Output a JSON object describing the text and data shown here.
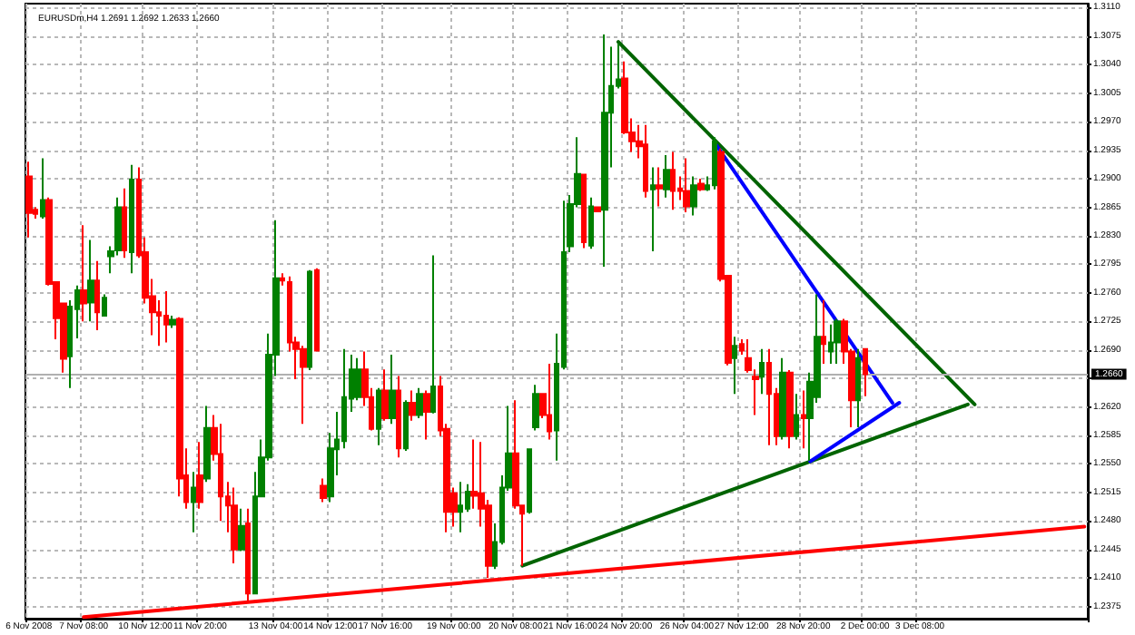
{
  "chart_data": {
    "type": "candlestick",
    "title": "EURUSDm,H4 1.2691 1.2692 1.2633 1.2660",
    "categories": [
      "6 Nov 2008",
      null,
      null,
      null,
      null,
      null,
      null,
      null,
      "7 Nov 08:00",
      null,
      null,
      null,
      null,
      null,
      null,
      null,
      null,
      "10 Nov 12:00",
      null,
      null,
      null,
      null,
      null,
      null,
      null,
      "11 Nov 20:00",
      null,
      null,
      null,
      null,
      null,
      null,
      null,
      null,
      null,
      null,
      "13 Nov 04:00",
      null,
      null,
      null,
      null,
      null,
      null,
      null,
      "14 Nov 12:00",
      null,
      null,
      null,
      null,
      null,
      null,
      null,
      "17 Nov 16:00",
      null,
      null,
      null,
      null,
      null,
      null,
      null,
      null,
      null,
      "19 Nov 00:00",
      null,
      null,
      null,
      null,
      null,
      null,
      null,
      null,
      "20 Nov 08:00",
      null,
      null,
      null,
      null,
      null,
      null,
      null,
      "21 Nov 16:00",
      null,
      null,
      null,
      null,
      null,
      null,
      null,
      "24 Nov 20:00",
      null,
      null,
      null,
      null,
      null,
      null,
      null,
      null,
      "26 Nov 04:00",
      null,
      null,
      null,
      null,
      null,
      null,
      null,
      "27 Nov 12:00",
      null,
      null,
      null,
      null,
      null,
      null,
      null,
      null,
      "28 Nov 20:00",
      null,
      null,
      null,
      null,
      null,
      null,
      null,
      null,
      "2 Dec 00:00",
      null,
      null,
      null,
      null,
      null,
      null,
      null,
      "3 Dec 08:00",
      null,
      null,
      null,
      null,
      null,
      null,
      null,
      null,
      null,
      null,
      null,
      null,
      null,
      null,
      null,
      null,
      null,
      null,
      null,
      null,
      null,
      null,
      null,
      null
    ],
    "ohlc": [
      [
        1.2903,
        1.2921,
        1.2828,
        1.2858
      ],
      [
        1.2862,
        1.2865,
        1.2851,
        1.2857
      ],
      [
        1.2854,
        1.2925,
        1.2851,
        1.2874
      ],
      [
        1.2874,
        1.2877,
        1.2769,
        1.2771
      ],
      [
        1.2773,
        1.2774,
        1.2703,
        1.2729
      ],
      [
        1.2747,
        1.2748,
        1.2662,
        1.2679
      ],
      [
        1.2682,
        1.2751,
        1.2643,
        1.2743
      ],
      [
        1.274,
        1.2769,
        1.2704,
        1.2763
      ],
      [
        1.2763,
        1.2843,
        1.2725,
        1.2747
      ],
      [
        1.2748,
        1.2825,
        1.2725,
        1.2775
      ],
      [
        1.2775,
        1.2799,
        1.2714,
        1.2736
      ],
      [
        1.2732,
        1.2758,
        1.2732,
        1.2754
      ],
      [
        1.2805,
        1.2817,
        1.2784,
        1.2811
      ],
      [
        1.2812,
        1.2877,
        1.2806,
        1.2865
      ],
      [
        1.2865,
        1.2888,
        1.2803,
        1.2812
      ],
      [
        1.281,
        1.2917,
        1.2784,
        1.2899
      ],
      [
        1.2899,
        1.2914,
        1.2803,
        1.2806
      ],
      [
        1.281,
        1.2828,
        1.2747,
        1.2754
      ],
      [
        1.2756,
        1.2777,
        1.2708,
        1.2736
      ],
      [
        1.2736,
        1.2751,
        1.2695,
        1.2732
      ],
      [
        1.2732,
        1.2762,
        1.2699,
        1.2721
      ],
      [
        1.2721,
        1.2732,
        1.2717,
        1.2727
      ],
      [
        1.2728,
        1.273,
        1.251,
        1.2532
      ],
      [
        1.2536,
        1.2569,
        1.2495,
        1.2503
      ],
      [
        1.2503,
        1.254,
        1.2466,
        1.2521
      ],
      [
        1.2536,
        1.2577,
        1.2495,
        1.2503
      ],
      [
        1.2532,
        1.2621,
        1.2528,
        1.2594
      ],
      [
        1.2594,
        1.261,
        1.2554,
        1.2562
      ],
      [
        1.2562,
        1.2599,
        1.248,
        1.251
      ],
      [
        1.251,
        1.2528,
        1.2466,
        1.2499
      ],
      [
        1.2499,
        1.2521,
        1.2428,
        1.2445
      ],
      [
        1.2445,
        1.2495,
        1.2443,
        1.2474
      ],
      [
        1.2477,
        1.2495,
        1.238,
        1.2391
      ],
      [
        1.2391,
        1.254,
        1.2391,
        1.251
      ],
      [
        1.251,
        1.258,
        1.251,
        1.2558
      ],
      [
        1.2558,
        1.271,
        1.2554,
        1.2684
      ],
      [
        1.2684,
        1.2849,
        1.2658,
        1.2778
      ],
      [
        1.2778,
        1.2784,
        1.2769,
        1.2775
      ],
      [
        1.2773,
        1.278,
        1.2688,
        1.2699
      ],
      [
        1.2699,
        1.2706,
        1.2654,
        1.2691
      ],
      [
        1.2691,
        1.2695,
        1.2599,
        1.2669
      ],
      [
        1.2669,
        1.2788,
        1.2665,
        1.2786
      ],
      [
        1.2788,
        1.279,
        1.2688,
        1.2689
      ],
      [
        1.2523,
        1.2532,
        1.2503,
        1.2508
      ],
      [
        1.251,
        1.2588,
        1.2503,
        1.2569
      ],
      [
        1.2568,
        1.2614,
        1.2536,
        1.258
      ],
      [
        1.2578,
        1.2691,
        1.2569,
        1.2632
      ],
      [
        1.263,
        1.2684,
        1.2614,
        1.2666
      ],
      [
        1.2632,
        1.268,
        1.2628,
        1.2666
      ],
      [
        1.2666,
        1.2688,
        1.2621,
        1.2632
      ],
      [
        1.2632,
        1.2643,
        1.2591,
        1.2593
      ],
      [
        1.2593,
        1.2643,
        1.2573,
        1.264
      ],
      [
        1.264,
        1.2666,
        1.2603,
        1.2606
      ],
      [
        1.2606,
        1.2684,
        1.2599,
        1.264
      ],
      [
        1.264,
        1.2658,
        1.2558,
        1.2569
      ],
      [
        1.2569,
        1.2628,
        1.2566,
        1.2625
      ],
      [
        1.2625,
        1.264,
        1.2603,
        1.261
      ],
      [
        1.261,
        1.2643,
        1.2606,
        1.2636
      ],
      [
        1.2636,
        1.264,
        1.258,
        1.2614
      ],
      [
        1.2614,
        1.2806,
        1.2612,
        1.2645
      ],
      [
        1.2645,
        1.2658,
        1.2584,
        1.2591
      ],
      [
        1.2593,
        1.2599,
        1.2466,
        1.2491
      ],
      [
        1.2514,
        1.2521,
        1.2473,
        1.2491
      ],
      [
        1.2491,
        1.2528,
        1.2466,
        1.2499
      ],
      [
        1.2495,
        1.2525,
        1.2491,
        1.2516
      ],
      [
        1.2516,
        1.258,
        1.2495,
        1.2511
      ],
      [
        1.2514,
        1.2577,
        1.2473,
        1.2495
      ],
      [
        1.2499,
        1.2506,
        1.241,
        1.2425
      ],
      [
        1.2425,
        1.2477,
        1.2421,
        1.2454
      ],
      [
        1.2454,
        1.2536,
        1.2451,
        1.2521
      ],
      [
        1.2521,
        1.2621,
        1.2517,
        1.2563
      ],
      [
        1.2563,
        1.2628,
        1.2495,
        1.2499
      ],
      [
        1.2499,
        1.2499,
        1.2425,
        1.2489
      ],
      [
        1.2491,
        1.2569,
        1.2489,
        1.2568
      ],
      [
        1.2595,
        1.2647,
        1.2591,
        1.2636
      ],
      [
        1.2636,
        1.2636,
        1.2606,
        1.261
      ],
      [
        1.261,
        1.2673,
        1.258,
        1.259
      ],
      [
        1.2591,
        1.271,
        1.2554,
        1.2673
      ],
      [
        1.2669,
        1.2873,
        1.2666,
        1.281
      ],
      [
        1.2817,
        1.288,
        1.281,
        1.2869
      ],
      [
        1.2869,
        1.2951,
        1.2865,
        1.2906
      ],
      [
        1.2905,
        1.2906,
        1.2815,
        1.2822
      ],
      [
        1.2818,
        1.2877,
        1.2814,
        1.2866
      ],
      [
        1.2865,
        1.2866,
        1.2859,
        1.286
      ],
      [
        1.2862,
        1.3077,
        1.2792,
        1.2981
      ],
      [
        1.2981,
        1.3062,
        1.2914,
        1.3014
      ],
      [
        1.3014,
        1.3066,
        1.3011,
        1.3022
      ],
      [
        1.3023,
        1.3044,
        1.2955,
        1.2957
      ],
      [
        1.2957,
        1.2974,
        1.2933,
        1.2946
      ],
      [
        1.2946,
        1.2966,
        1.2925,
        1.294
      ],
      [
        1.2942,
        1.2966,
        1.2877,
        1.2885
      ],
      [
        1.2887,
        1.2914,
        1.2811,
        1.2892
      ],
      [
        1.2892,
        1.2914,
        1.2866,
        1.2888
      ],
      [
        1.2887,
        1.2929,
        1.2877,
        1.2911
      ],
      [
        1.2911,
        1.2933,
        1.2862,
        1.2885
      ],
      [
        1.2888,
        1.2903,
        1.2874,
        1.2885
      ],
      [
        1.2885,
        1.2925,
        1.2859,
        1.2866
      ],
      [
        1.2866,
        1.2903,
        1.2855,
        1.2892
      ],
      [
        1.2894,
        1.29,
        1.2885,
        1.2887
      ],
      [
        1.2887,
        1.2903,
        1.2885,
        1.2892
      ],
      [
        1.2892,
        1.2951,
        1.2887,
        1.2946
      ],
      [
        1.2933,
        1.2937,
        1.2774,
        1.2777
      ],
      [
        1.2781,
        1.2781,
        1.2671,
        1.2674
      ],
      [
        1.268,
        1.2706,
        1.2636,
        1.2695
      ],
      [
        1.2697,
        1.2703,
        1.2684,
        1.2689
      ],
      [
        1.268,
        1.2703,
        1.2662,
        1.2665
      ],
      [
        1.2657,
        1.2666,
        1.261,
        1.2654
      ],
      [
        1.2657,
        1.2691,
        1.2636,
        1.2674
      ],
      [
        1.2674,
        1.2691,
        1.2573,
        1.2636
      ],
      [
        1.2636,
        1.2643,
        1.2573,
        1.2584
      ],
      [
        1.2584,
        1.268,
        1.258,
        1.2662
      ],
      [
        1.2662,
        1.2665,
        1.2569,
        1.2584
      ],
      [
        1.2584,
        1.2636,
        1.258,
        1.261
      ],
      [
        1.261,
        1.264,
        1.2569,
        1.2606
      ],
      [
        1.2606,
        1.2662,
        1.2554,
        1.2651
      ],
      [
        1.2632,
        1.2758,
        1.2625,
        1.2706
      ],
      [
        1.2706,
        1.2751,
        1.2673,
        1.2697
      ],
      [
        1.2688,
        1.2721,
        1.2673,
        1.2699
      ],
      [
        1.2699,
        1.2728,
        1.2673,
        1.2725
      ],
      [
        1.2725,
        1.2728,
        1.2673,
        1.2688
      ],
      [
        1.2688,
        1.2691,
        1.2595,
        1.2628
      ],
      [
        1.2628,
        1.2691,
        1.2595,
        1.268
      ],
      [
        1.2691,
        1.2692,
        1.2633,
        1.266
      ],
      null,
      null,
      null,
      null,
      null,
      null,
      null,
      null,
      null,
      null,
      null,
      null,
      null,
      null,
      null,
      null,
      null,
      null,
      null,
      null,
      null,
      null,
      null,
      null,
      null,
      null,
      null,
      null,
      null,
      null,
      null,
      null
    ],
    "colors": [
      "#ff0000",
      "#ff0000",
      "#008000",
      "#ff0000",
      "#ff0000",
      "#ff0000",
      "#008000",
      "#008000",
      "#ff0000",
      "#008000",
      "#ff0000",
      "#008000",
      "#008000",
      "#008000",
      "#ff0000",
      "#008000",
      "#ff0000",
      "#ff0000",
      "#ff0000",
      "#ff0000",
      "#ff0000",
      "#008000",
      "#ff0000",
      "#ff0000",
      "#008000",
      "#ff0000",
      "#008000",
      "#ff0000",
      "#ff0000",
      "#ff0000",
      "#ff0000",
      "#008000",
      "#ff0000",
      "#008000",
      "#008000",
      "#008000",
      "#008000",
      "#ff0000",
      "#ff0000",
      "#ff0000",
      "#ff0000",
      "#008000",
      "#ff0000",
      "#ff0000",
      "#008000",
      "#008000",
      "#008000",
      "#008000",
      "#008000",
      "#ff0000",
      "#ff0000",
      "#008000",
      "#ff0000",
      "#008000",
      "#ff0000",
      "#008000",
      "#ff0000",
      "#008000",
      "#ff0000",
      "#008000",
      "#ff0000",
      "#ff0000",
      "#ff0000",
      "#008000",
      "#008000",
      "#ff0000",
      "#ff0000",
      "#ff0000",
      "#008000",
      "#008000",
      "#008000",
      "#ff0000",
      "#ff0000",
      "#008000",
      "#008000",
      "#ff0000",
      "#ff0000",
      "#008000",
      "#008000",
      "#008000",
      "#008000",
      "#ff0000",
      "#008000",
      "#ff0000",
      "#008000",
      "#008000",
      "#008000",
      "#ff0000",
      "#ff0000",
      "#ff0000",
      "#ff0000",
      "#008000",
      "#ff0000",
      "#008000",
      "#ff0000",
      "#ff0000",
      "#ff0000",
      "#008000",
      "#ff0000",
      "#008000",
      "#008000",
      "#ff0000",
      "#ff0000",
      "#008000",
      "#ff0000",
      "#ff0000",
      "#ff0000",
      "#008000",
      "#ff0000",
      "#ff0000",
      "#008000",
      "#ff0000",
      "#008000",
      "#ff0000",
      "#008000",
      "#008000",
      "#ff0000",
      "#008000",
      "#008000",
      "#ff0000",
      "#ff0000",
      "#008000",
      "#ff0000",
      null,
      null,
      null,
      null,
      null,
      null,
      null,
      null,
      null,
      null,
      null,
      null,
      null,
      null,
      null,
      null,
      null,
      null,
      null,
      null,
      null,
      null,
      null,
      null,
      null,
      null,
      null,
      null,
      null,
      null,
      null,
      null
    ],
    "series": [
      {
        "type": "line",
        "color": "#006400",
        "values": [
          null,
          null,
          null,
          null,
          null,
          null,
          null,
          null,
          null,
          null,
          null,
          null,
          null,
          null,
          null,
          null,
          null,
          null,
          null,
          null,
          null,
          null,
          null,
          null,
          null,
          null,
          null,
          null,
          null,
          null,
          null,
          null,
          null,
          null,
          null,
          null,
          null,
          null,
          null,
          null,
          null,
          null,
          null,
          null,
          null,
          null,
          null,
          null,
          null,
          null,
          null,
          null,
          null,
          null,
          null,
          null,
          null,
          null,
          null,
          null,
          null,
          null,
          null,
          null,
          null,
          null,
          null,
          null,
          null,
          null,
          null,
          null,
          null,
          null,
          null,
          null,
          null,
          null,
          null,
          null,
          null,
          null,
          null,
          null,
          null,
          null,
          1.3068,
          null,
          null,
          null,
          null,
          null,
          null,
          null,
          null,
          null,
          null,
          null,
          null,
          null,
          null,
          null,
          null,
          null,
          null,
          null,
          null,
          null,
          null,
          null,
          null,
          null,
          null,
          null,
          null,
          null,
          null,
          null,
          null,
          null,
          null,
          null,
          null,
          null,
          null,
          null,
          null,
          null,
          null,
          null,
          null,
          null,
          null,
          null,
          null,
          null,
          null,
          null,
          1.2623,
          null,
          null,
          null,
          null,
          null,
          null,
          null,
          null,
          null,
          null,
          null,
          null,
          null,
          null,
          null,
          null
        ]
      },
      {
        "type": "line",
        "color": "#006400",
        "values": [
          null,
          null,
          null,
          null,
          null,
          null,
          null,
          null,
          null,
          null,
          null,
          null,
          null,
          null,
          null,
          null,
          null,
          null,
          null,
          null,
          null,
          null,
          null,
          null,
          null,
          null,
          null,
          null,
          null,
          null,
          null,
          null,
          null,
          null,
          null,
          null,
          null,
          null,
          null,
          null,
          null,
          null,
          null,
          null,
          null,
          null,
          null,
          null,
          null,
          null,
          null,
          null,
          null,
          null,
          null,
          null,
          null,
          null,
          null,
          null,
          null,
          null,
          null,
          null,
          null,
          null,
          null,
          null,
          null,
          null,
          null,
          null,
          1.2425,
          null,
          null,
          null,
          null,
          null,
          null,
          null,
          null,
          null,
          null,
          null,
          null,
          null,
          null,
          null,
          null,
          null,
          null,
          null,
          null,
          null,
          null,
          null,
          null,
          null,
          null,
          null,
          null,
          null,
          null,
          null,
          null,
          null,
          null,
          null,
          null,
          null,
          null,
          null,
          null,
          null,
          null,
          null,
          null,
          null,
          null,
          null,
          null,
          null,
          null,
          null,
          null,
          null,
          null,
          null,
          null,
          null,
          null,
          null,
          null,
          null,
          null,
          null,
          null,
          1.2623,
          null,
          null,
          null,
          null,
          null,
          null,
          null,
          null,
          null,
          null,
          null,
          null,
          null,
          null,
          null,
          null,
          null
        ]
      },
      {
        "type": "line",
        "color": "#0000ff",
        "values": [
          null,
          null,
          null,
          null,
          null,
          null,
          null,
          null,
          null,
          null,
          null,
          null,
          null,
          null,
          null,
          null,
          null,
          null,
          null,
          null,
          null,
          null,
          null,
          null,
          null,
          null,
          null,
          null,
          null,
          null,
          null,
          null,
          null,
          null,
          null,
          null,
          null,
          null,
          null,
          null,
          null,
          null,
          null,
          null,
          null,
          null,
          null,
          null,
          null,
          null,
          null,
          null,
          null,
          null,
          null,
          null,
          null,
          null,
          null,
          null,
          null,
          null,
          null,
          null,
          null,
          null,
          null,
          null,
          null,
          null,
          null,
          null,
          null,
          null,
          null,
          null,
          null,
          null,
          null,
          null,
          null,
          null,
          null,
          null,
          null,
          null,
          null,
          null,
          null,
          null,
          null,
          null,
          null,
          null,
          null,
          null,
          null,
          null,
          null,
          null,
          1.2945,
          null,
          null,
          null,
          null,
          null,
          null,
          null,
          null,
          null,
          null,
          null,
          null,
          null,
          null,
          null,
          null,
          null,
          null,
          null,
          null,
          null,
          null,
          null,
          null,
          null,
          1.2625,
          null,
          null,
          null,
          null,
          null,
          null,
          null,
          null,
          null,
          null,
          null,
          null,
          null,
          null,
          null,
          null,
          null,
          null,
          null,
          null,
          null,
          null,
          null,
          null,
          null,
          null,
          null,
          null
        ]
      },
      {
        "type": "line",
        "color": "#0000ff",
        "values": [
          null,
          null,
          null,
          null,
          null,
          null,
          null,
          null,
          null,
          null,
          null,
          null,
          null,
          null,
          null,
          null,
          null,
          null,
          null,
          null,
          null,
          null,
          null,
          null,
          null,
          null,
          null,
          null,
          null,
          null,
          null,
          null,
          null,
          null,
          null,
          null,
          null,
          null,
          null,
          null,
          null,
          null,
          null,
          null,
          null,
          null,
          null,
          null,
          null,
          null,
          null,
          null,
          null,
          null,
          null,
          null,
          null,
          null,
          null,
          null,
          null,
          null,
          null,
          null,
          null,
          null,
          null,
          null,
          null,
          null,
          null,
          null,
          null,
          null,
          null,
          null,
          null,
          null,
          null,
          null,
          null,
          null,
          null,
          null,
          null,
          null,
          null,
          null,
          null,
          null,
          null,
          null,
          null,
          null,
          null,
          null,
          null,
          null,
          null,
          null,
          null,
          null,
          null,
          null,
          null,
          null,
          null,
          null,
          null,
          null,
          null,
          null,
          null,
          null,
          1.2553,
          null,
          null,
          null,
          null,
          null,
          null,
          null,
          null,
          null,
          null,
          null,
          null,
          1.2625,
          null,
          null,
          null,
          null,
          null,
          null,
          null,
          null,
          null,
          null,
          null,
          null,
          null,
          null,
          null,
          null,
          null,
          null,
          null,
          null,
          null,
          null,
          null,
          null,
          null,
          null,
          null
        ]
      },
      {
        "type": "line",
        "color": "#ff0000",
        "values": [
          null,
          null,
          null,
          null,
          null,
          null,
          null,
          null,
          1.2362,
          null,
          null,
          null,
          null,
          null,
          null,
          null,
          null,
          null,
          null,
          null,
          null,
          null,
          null,
          null,
          null,
          null,
          null,
          null,
          null,
          null,
          null,
          null,
          null,
          null,
          null,
          null,
          null,
          null,
          null,
          null,
          null,
          null,
          null,
          null,
          null,
          null,
          null,
          null,
          null,
          null,
          null,
          null,
          null,
          null,
          null,
          null,
          null,
          null,
          null,
          null,
          null,
          null,
          null,
          null,
          null,
          null,
          null,
          null,
          null,
          null,
          null,
          null,
          null,
          null,
          null,
          null,
          null,
          null,
          null,
          null,
          null,
          null,
          null,
          null,
          null,
          null,
          null,
          null,
          null,
          null,
          null,
          null,
          null,
          null,
          null,
          null,
          null,
          null,
          null,
          null,
          null,
          null,
          null,
          null,
          null,
          null,
          null,
          null,
          null,
          null,
          null,
          null,
          null,
          null,
          null,
          null,
          null,
          null,
          null,
          null,
          null,
          null,
          null,
          null,
          null,
          null,
          null,
          null,
          null,
          null,
          null,
          null,
          null,
          null,
          null,
          null,
          null,
          null,
          null,
          null,
          null,
          null,
          null,
          null,
          null,
          null,
          null,
          null,
          null,
          null,
          null,
          null,
          null,
          null,
          1.2473
        ]
      }
    ],
    "marker": "none",
    "line_style": "solid",
    "ylim": [
      1.236,
      1.3115
    ],
    "yticks": [
      {
        "value": 1.311,
        "label": "1.3110"
      },
      1.3075,
      {
        "value": 1.304,
        "label": "1.3040"
      },
      1.3005,
      {
        "value": 1.297,
        "label": "1.2970"
      },
      1.2935,
      {
        "value": 1.29,
        "label": "1.2900"
      },
      1.2865,
      {
        "value": 1.283,
        "label": "1.2830"
      },
      1.2795,
      {
        "value": 1.276,
        "label": "1.2760"
      },
      1.2725,
      {
        "value": 1.269,
        "label": "1.2690"
      },
      {
        "value": 1.2655,
        "label": null
      },
      {
        "value": 1.262,
        "label": "1.2620"
      },
      1.2585,
      {
        "value": 1.255,
        "label": "1.2550"
      },
      1.2515,
      {
        "value": 1.248,
        "label": "1.2480"
      },
      1.2445,
      {
        "value": 1.241,
        "label": "1.2410"
      },
      1.2375
    ],
    "ref_lines": [
      {
        "axis": "y",
        "value": 1.266,
        "label": "1.2660",
        "color": "#b0b0b0"
      }
    ],
    "grid": true
  }
}
